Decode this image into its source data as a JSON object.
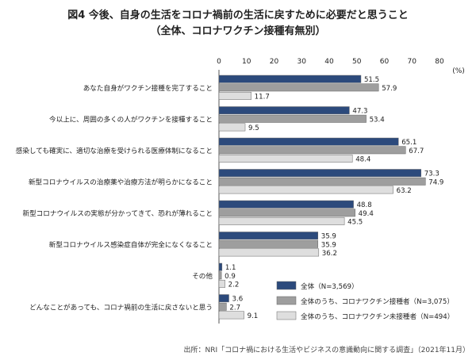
{
  "chart_data": {
    "type": "bar",
    "orientation": "horizontal",
    "title": "図4 今後、自身の生活をコロナ禍前の生活に戻すために必要だと思うこと",
    "subtitle": "（全体、コロナワクチン接種有無別）",
    "unit_label": "(%)",
    "xlim": [
      0,
      80
    ],
    "xticks": [
      0,
      10,
      20,
      30,
      40,
      50,
      60,
      70,
      80
    ],
    "grid": false,
    "legend_position": "bottom-right",
    "categories": [
      "あなた自身がワクチン接種を完了すること",
      "今以上に、周囲の多くの人がワクチンを接種すること",
      "感染しても確実に、適切な治療を受けられる医療体制になること",
      "新型コロナウイルスの治療薬や治療方法が明らかになること",
      "新型コロナウイルスの実態が分かってきて、恐れが薄れること",
      "新型コロナウイルス感染症自体が完全になくなること",
      "その他",
      "どんなことがあっても、コロナ禍前の生活に戻さないと思う"
    ],
    "series": [
      {
        "name": "全体（N=3,569）",
        "color": "#2c4a7c",
        "values": [
          51.5,
          47.3,
          65.1,
          73.3,
          48.8,
          35.9,
          1.1,
          3.6
        ]
      },
      {
        "name": "全体のうち、コロナワクチン接種者（N=3,075）",
        "color": "#9e9e9e",
        "values": [
          57.9,
          53.4,
          67.7,
          74.9,
          49.4,
          35.9,
          0.9,
          2.7
        ]
      },
      {
        "name": "全体のうち、コロナワクチン未接種者（N=494）",
        "color": "#dedede",
        "values": [
          11.7,
          9.5,
          48.4,
          63.2,
          45.5,
          36.2,
          2.2,
          9.1
        ]
      }
    ]
  },
  "source": "出所：NRI「コロナ禍における生活やビジネスの意識動向に関する調査」（2021年11月）"
}
